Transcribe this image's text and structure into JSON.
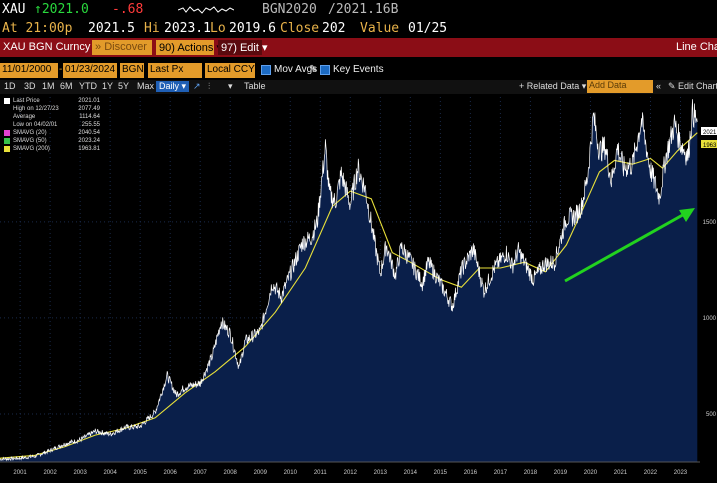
{
  "ticker": {
    "symbol": "XAU",
    "price": "↑2021.0",
    "change": "-.68",
    "bgn_bid": "BGN2020",
    "bgn_ask": "/2021.16B",
    "at_time": "At 21:00p",
    "open": "2021.5",
    "hi_label": "Hi",
    "hi": "2023.1",
    "lo_label": "Lo",
    "lo": "2019.6",
    "close_label": "Close",
    "close": "202",
    "value_label": "Value",
    "value_date": "01/25"
  },
  "header": {
    "security": "XAU BGN Curncy",
    "discover": "Discover",
    "actions": "90) Actions ▾",
    "edit": "97) Edit ▾",
    "view": "Line Chart"
  },
  "params": {
    "start_date": "11/01/2000",
    "end_date": "01/23/2024",
    "source": "BGN",
    "field": "Last Px",
    "currency": "Local CCY",
    "mov_avgs": "Mov Avgs",
    "key_events": "Key Events"
  },
  "periods": {
    "items": [
      "1D",
      "3D",
      "1M",
      "6M",
      "YTD",
      "1Y",
      "5Y",
      "Max"
    ],
    "frequency": "Daily ▾",
    "table": "Table",
    "related": "+ Related Data ▾",
    "add_data_placeholder": "Add Data",
    "edit_chart": "✎ Edit Chart"
  },
  "legend": [
    {
      "label": "Last Price",
      "value": "2021.01",
      "color": "#ffffff"
    },
    {
      "label": "High on 12/27/23",
      "value": "2077.49",
      "color": "none"
    },
    {
      "label": "Average",
      "value": "1114.64",
      "color": "none"
    },
    {
      "label": "Low on 04/02/01",
      "value": "255.55",
      "color": "none"
    },
    {
      "label": "SMAVG (20)",
      "value": "2040.54",
      "color": "#e040d0"
    },
    {
      "label": "SMAVG (50)",
      "value": "2023.24",
      "color": "#36c04a"
    },
    {
      "label": "SMAVG (200)",
      "value": "1963.81",
      "color": "#e8e03a"
    }
  ],
  "axis_tags": {
    "last": "2021",
    "sma200": "1963"
  },
  "chart_data": {
    "type": "area",
    "x": [
      "2001",
      "2002",
      "2003",
      "2004",
      "2005",
      "2006",
      "2007",
      "2008",
      "2009",
      "2010",
      "2011",
      "2012",
      "2013",
      "2014",
      "2015",
      "2016",
      "2017",
      "2018",
      "2019",
      "2020",
      "2021",
      "2022",
      "2023"
    ],
    "ylim": [
      250,
      2150
    ],
    "yticks": [
      500,
      1000,
      1500
    ],
    "series": [
      {
        "name": "Last Price",
        "values": [
          [
            2000.83,
            265
          ],
          [
            2001.5,
            270
          ],
          [
            2002.0,
            280
          ],
          [
            2002.5,
            310
          ],
          [
            2003.0,
            345
          ],
          [
            2003.5,
            365
          ],
          [
            2004.0,
            410
          ],
          [
            2004.5,
            395
          ],
          [
            2005.0,
            430
          ],
          [
            2005.5,
            435
          ],
          [
            2006.0,
            510
          ],
          [
            2006.4,
            700
          ],
          [
            2006.7,
            600
          ],
          [
            2007.0,
            640
          ],
          [
            2007.5,
            660
          ],
          [
            2007.9,
            800
          ],
          [
            2008.2,
            980
          ],
          [
            2008.5,
            920
          ],
          [
            2008.8,
            740
          ],
          [
            2009.0,
            880
          ],
          [
            2009.5,
            930
          ],
          [
            2009.9,
            1180
          ],
          [
            2010.2,
            1110
          ],
          [
            2010.5,
            1230
          ],
          [
            2010.9,
            1390
          ],
          [
            2011.2,
            1420
          ],
          [
            2011.4,
            1500
          ],
          [
            2011.67,
            1890
          ],
          [
            2011.8,
            1650
          ],
          [
            2012.0,
            1600
          ],
          [
            2012.2,
            1750
          ],
          [
            2012.5,
            1590
          ],
          [
            2012.75,
            1780
          ],
          [
            2013.0,
            1670
          ],
          [
            2013.3,
            1400
          ],
          [
            2013.5,
            1230
          ],
          [
            2013.7,
            1380
          ],
          [
            2014.0,
            1220
          ],
          [
            2014.2,
            1370
          ],
          [
            2014.5,
            1300
          ],
          [
            2014.9,
            1180
          ],
          [
            2015.1,
            1290
          ],
          [
            2015.5,
            1180
          ],
          [
            2015.9,
            1060
          ],
          [
            2016.2,
            1250
          ],
          [
            2016.6,
            1360
          ],
          [
            2016.95,
            1140
          ],
          [
            2017.3,
            1260
          ],
          [
            2017.7,
            1340
          ],
          [
            2017.9,
            1270
          ],
          [
            2018.1,
            1350
          ],
          [
            2018.6,
            1200
          ],
          [
            2018.95,
            1280
          ],
          [
            2019.3,
            1290
          ],
          [
            2019.7,
            1520
          ],
          [
            2020.0,
            1530
          ],
          [
            2020.2,
            1580
          ],
          [
            2020.4,
            1730
          ],
          [
            2020.6,
            2050
          ],
          [
            2020.8,
            1870
          ],
          [
            2021.0,
            1890
          ],
          [
            2021.2,
            1710
          ],
          [
            2021.4,
            1890
          ],
          [
            2021.6,
            1780
          ],
          [
            2021.9,
            1800
          ],
          [
            2022.2,
            2030
          ],
          [
            2022.5,
            1770
          ],
          [
            2022.8,
            1630
          ],
          [
            2023.0,
            1830
          ],
          [
            2023.3,
            2010
          ],
          [
            2023.5,
            1910
          ],
          [
            2023.75,
            1840
          ],
          [
            2023.9,
            2070
          ],
          [
            2024.06,
            2021
          ]
        ]
      },
      {
        "name": "SMAVG (200)",
        "values": [
          [
            2000.83,
            270
          ],
          [
            2002.0,
            285
          ],
          [
            2003.0,
            330
          ],
          [
            2004.0,
            390
          ],
          [
            2005.0,
            425
          ],
          [
            2006.0,
            480
          ],
          [
            2007.0,
            610
          ],
          [
            2008.0,
            720
          ],
          [
            2009.0,
            850
          ],
          [
            2010.0,
            1030
          ],
          [
            2011.0,
            1260
          ],
          [
            2011.9,
            1580
          ],
          [
            2012.5,
            1660
          ],
          [
            2013.2,
            1620
          ],
          [
            2013.9,
            1340
          ],
          [
            2014.5,
            1290
          ],
          [
            2015.5,
            1200
          ],
          [
            2016.2,
            1160
          ],
          [
            2016.8,
            1260
          ],
          [
            2017.5,
            1260
          ],
          [
            2018.3,
            1290
          ],
          [
            2019.0,
            1240
          ],
          [
            2019.7,
            1380
          ],
          [
            2020.2,
            1550
          ],
          [
            2020.8,
            1760
          ],
          [
            2021.3,
            1820
          ],
          [
            2021.9,
            1800
          ],
          [
            2022.5,
            1830
          ],
          [
            2022.9,
            1780
          ],
          [
            2023.4,
            1870
          ],
          [
            2024.06,
            1964
          ]
        ]
      }
    ]
  },
  "colors": {
    "area_fill": "#0a1f4a",
    "price_line": "#ffffff",
    "sma200": "#e8e03a",
    "arrow": "#22d21f",
    "header_red": "#8b0d16",
    "amber": "#e39b2a"
  }
}
